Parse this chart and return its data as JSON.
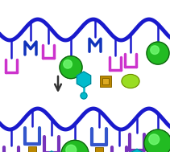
{
  "fig_width": 2.11,
  "fig_height": 1.89,
  "dpi": 100,
  "bg_color": "#ffffff",
  "chain_color": "#1a1acc",
  "chain_lw": 3.5,
  "arrow_color": "#333333",
  "magenta": "#cc33cc",
  "blue_dark": "#1133bb",
  "green_ball": "#22bb22",
  "green_highlight": "#77ff77",
  "green_dark": "#115511",
  "cyan": "#00bbcc",
  "cyan_dark": "#007788",
  "gold": "#bb8800",
  "gold_dark": "#886600",
  "lime": "#99dd22",
  "purple": "#7733bb",
  "yellow": "#ddcc00",
  "teal": "#00aaaa",
  "blue_mid": "#3355cc"
}
